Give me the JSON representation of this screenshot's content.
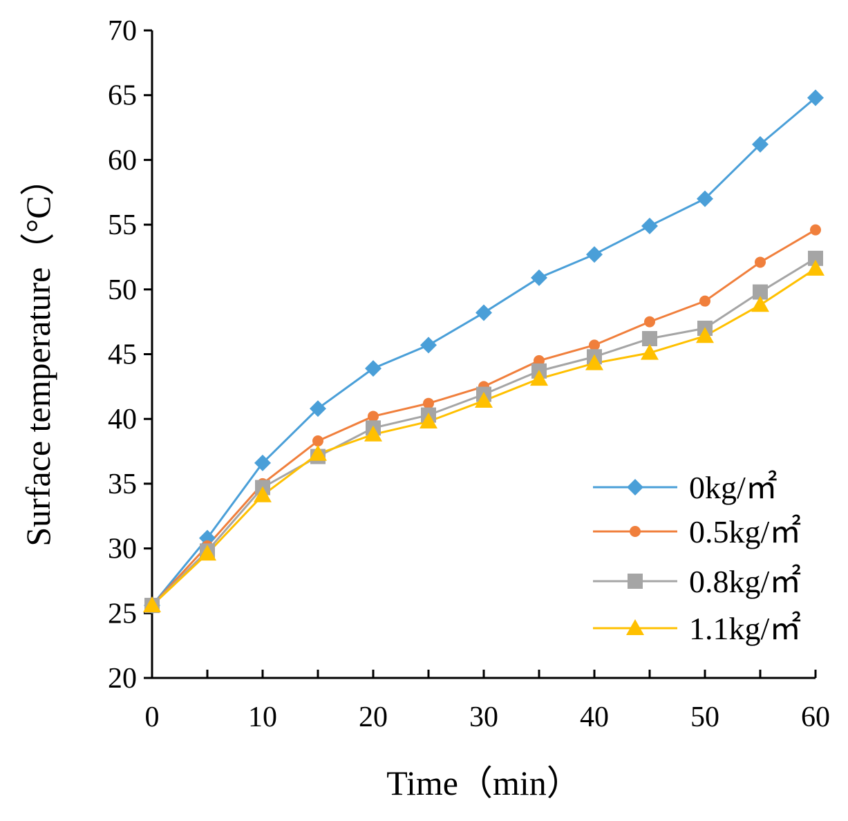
{
  "chart_data": {
    "type": "line",
    "title": "",
    "xlabel": "Time（min）",
    "ylabel": "Surface temperature（°C）",
    "xlim": [
      0,
      60
    ],
    "ylim": [
      20,
      70
    ],
    "xticks": [
      0,
      10,
      20,
      30,
      40,
      50,
      60
    ],
    "yticks": [
      20,
      25,
      30,
      35,
      40,
      45,
      50,
      55,
      60,
      65,
      70
    ],
    "grid": false,
    "legend_position": "bottom-right",
    "x": [
      0,
      5,
      10,
      15,
      20,
      25,
      30,
      35,
      40,
      45,
      50,
      55,
      60
    ],
    "series": [
      {
        "name": "0kg/㎡",
        "color": "#4a9fd8",
        "marker": "diamond",
        "values": [
          25.6,
          30.8,
          36.6,
          40.8,
          43.9,
          45.7,
          48.2,
          50.9,
          52.7,
          54.9,
          57.0,
          61.2,
          64.8
        ]
      },
      {
        "name": "0.5kg/㎡",
        "color": "#f07f3c",
        "marker": "circle",
        "values": [
          25.6,
          30.2,
          35.0,
          38.3,
          40.2,
          41.2,
          42.5,
          44.5,
          45.7,
          47.5,
          49.1,
          52.1,
          54.6
        ]
      },
      {
        "name": "0.8kg/㎡",
        "color": "#a5a5a5",
        "marker": "square",
        "values": [
          25.6,
          29.8,
          34.7,
          37.1,
          39.3,
          40.3,
          41.9,
          43.7,
          44.8,
          46.2,
          47.0,
          49.8,
          52.4
        ]
      },
      {
        "name": "1.1kg/㎡",
        "color": "#ffc000",
        "marker": "triangle",
        "values": [
          25.6,
          29.6,
          34.1,
          37.3,
          38.8,
          39.8,
          41.4,
          43.1,
          44.3,
          45.1,
          46.4,
          48.8,
          51.6
        ]
      }
    ]
  }
}
